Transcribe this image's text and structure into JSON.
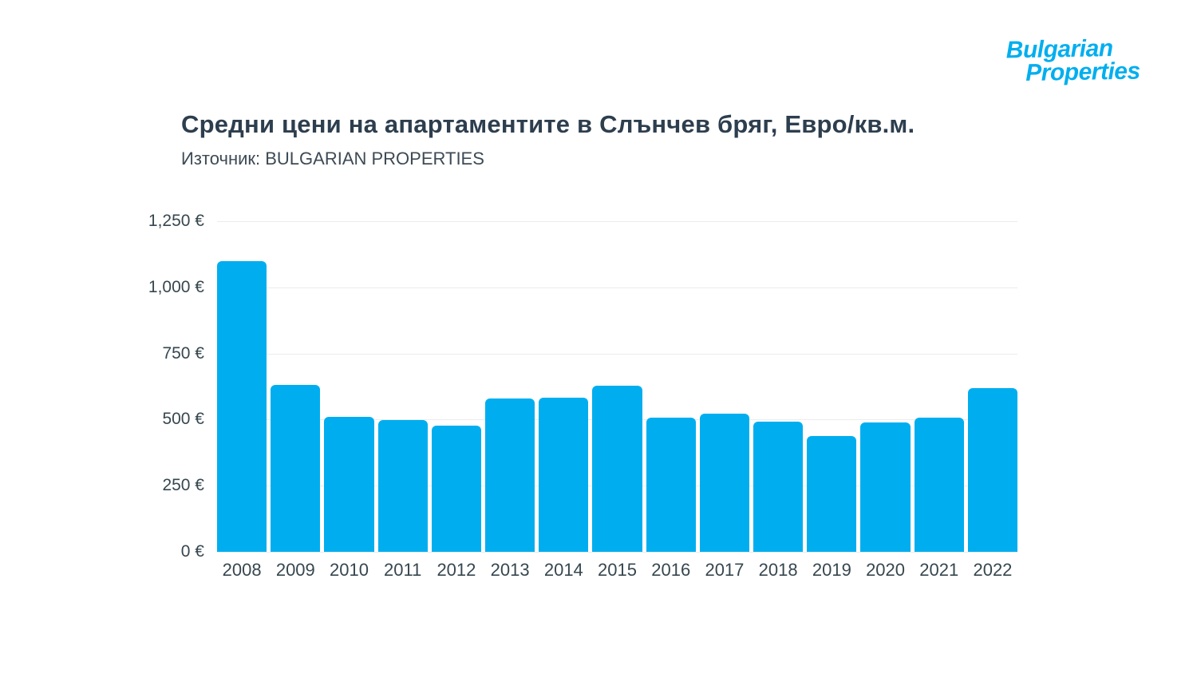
{
  "logo": {
    "line1": "Bulgarian",
    "line2": "Properties",
    "color": "#00aeef"
  },
  "title": "Средни цени на апартаментите в Слънчев бряг, Евро/кв.м.",
  "source": "Източник: BULGARIAN PROPERTIES",
  "chart_data": {
    "type": "bar",
    "title": "Средни цени на апартаментите в Слънчев бряг, Евро/кв.м.",
    "subtitle": "Източник: BULGARIAN PROPERTIES",
    "categories": [
      "2008",
      "2009",
      "2010",
      "2011",
      "2012",
      "2013",
      "2014",
      "2015",
      "2016",
      "2017",
      "2018",
      "2019",
      "2020",
      "2021",
      "2022"
    ],
    "values": [
      1100,
      630,
      510,
      498,
      477,
      580,
      582,
      627,
      507,
      522,
      492,
      438,
      490,
      508,
      620
    ],
    "xlabel": "",
    "ylabel": "",
    "ylim": [
      0,
      1250
    ],
    "yticks": [
      0,
      250,
      500,
      750,
      1000,
      1250
    ],
    "ytick_labels": [
      "0 €",
      "250 €",
      "500 €",
      "750 €",
      "1,000 €",
      "1,250 €"
    ],
    "bar_color": "#00aeef",
    "grid": true,
    "legend": "none"
  }
}
